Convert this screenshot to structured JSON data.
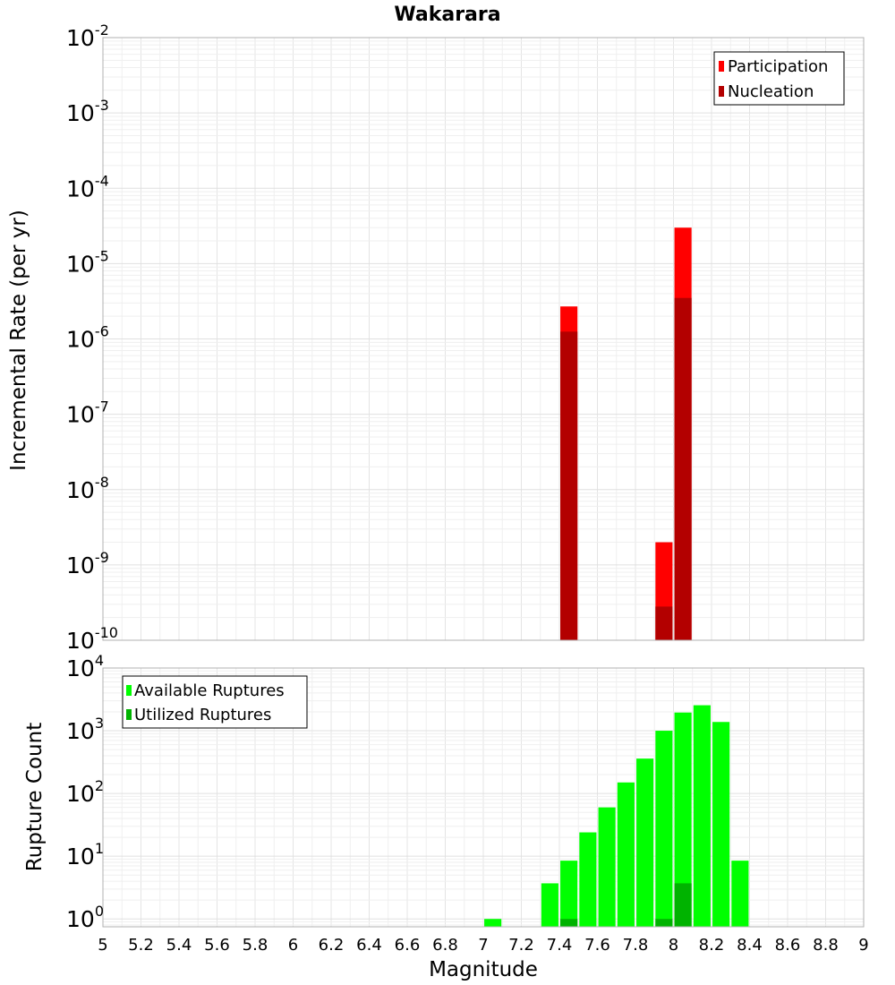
{
  "chart_data": [
    {
      "type": "bar",
      "title": "Wakarara",
      "xlabel": "",
      "ylabel": "Incremental Rate (per yr)",
      "xlim": [
        5,
        9
      ],
      "ylim": [
        1e-10,
        0.01
      ],
      "yscale": "log",
      "grid": true,
      "legend_position": "top-right",
      "ytick_labels": [
        {
          "base": "10",
          "exp": "-10",
          "value": 1e-10
        },
        {
          "base": "10",
          "exp": "-9",
          "value": 1e-09
        },
        {
          "base": "10",
          "exp": "-8",
          "value": 1e-08
        },
        {
          "base": "10",
          "exp": "-7",
          "value": 1e-07
        },
        {
          "base": "10",
          "exp": "-6",
          "value": 1e-06
        },
        {
          "base": "10",
          "exp": "-5",
          "value": 1e-05
        },
        {
          "base": "10",
          "exp": "-4",
          "value": 0.0001
        },
        {
          "base": "10",
          "exp": "-3",
          "value": 0.001
        },
        {
          "base": "10",
          "exp": "-2",
          "value": 0.01
        }
      ],
      "series": [
        {
          "name": "Participation",
          "color": "#ff0000",
          "points": [
            {
              "x": 7.45,
              "y": 2.7e-06
            },
            {
              "x": 7.95,
              "y": 2e-09
            },
            {
              "x": 8.05,
              "y": 3e-05
            }
          ]
        },
        {
          "name": "Nucleation",
          "color": "#b30000",
          "points": [
            {
              "x": 7.45,
              "y": 1.25e-06
            },
            {
              "x": 7.95,
              "y": 2.8e-10
            },
            {
              "x": 8.05,
              "y": 3.5e-06
            }
          ]
        }
      ]
    },
    {
      "type": "bar",
      "title": "",
      "xlabel": "Magnitude",
      "ylabel": "Rupture Count",
      "xlim": [
        5,
        9
      ],
      "ylim": [
        0.75,
        10000
      ],
      "yscale": "log",
      "grid": true,
      "legend_position": "top-left",
      "ytick_labels": [
        {
          "base": "10",
          "exp": "0",
          "value": 1
        },
        {
          "base": "10",
          "exp": "1",
          "value": 10
        },
        {
          "base": "10",
          "exp": "2",
          "value": 100
        },
        {
          "base": "10",
          "exp": "3",
          "value": 1000
        },
        {
          "base": "10",
          "exp": "4",
          "value": 10000
        }
      ],
      "xtick_labels": [
        "5",
        "5.2",
        "5.4",
        "5.6",
        "5.8",
        "6",
        "6.2",
        "6.4",
        "6.6",
        "6.8",
        "7",
        "7.2",
        "7.4",
        "7.6",
        "7.8",
        "8",
        "8.2",
        "8.4",
        "8.6",
        "8.8",
        "9"
      ],
      "xtick_values": [
        5,
        5.2,
        5.4,
        5.6,
        5.8,
        6,
        6.2,
        6.4,
        6.6,
        6.8,
        7,
        7.2,
        7.4,
        7.6,
        7.8,
        8,
        8.2,
        8.4,
        8.6,
        8.8,
        9
      ],
      "series": [
        {
          "name": "Available Ruptures",
          "color": "#00ff00",
          "points": [
            {
              "x": 7.05,
              "y": 1
            },
            {
              "x": 7.35,
              "y": 3.7
            },
            {
              "x": 7.45,
              "y": 8.5
            },
            {
              "x": 7.55,
              "y": 24
            },
            {
              "x": 7.65,
              "y": 60
            },
            {
              "x": 7.75,
              "y": 150
            },
            {
              "x": 7.85,
              "y": 360
            },
            {
              "x": 7.95,
              "y": 1000
            },
            {
              "x": 8.05,
              "y": 1950
            },
            {
              "x": 8.15,
              "y": 2550
            },
            {
              "x": 8.25,
              "y": 1380
            },
            {
              "x": 8.35,
              "y": 8.5
            }
          ]
        },
        {
          "name": "Utilized Ruptures",
          "color": "#00b300",
          "points": [
            {
              "x": 7.45,
              "y": 1
            },
            {
              "x": 7.95,
              "y": 1
            },
            {
              "x": 8.05,
              "y": 3.7
            }
          ]
        }
      ]
    }
  ]
}
